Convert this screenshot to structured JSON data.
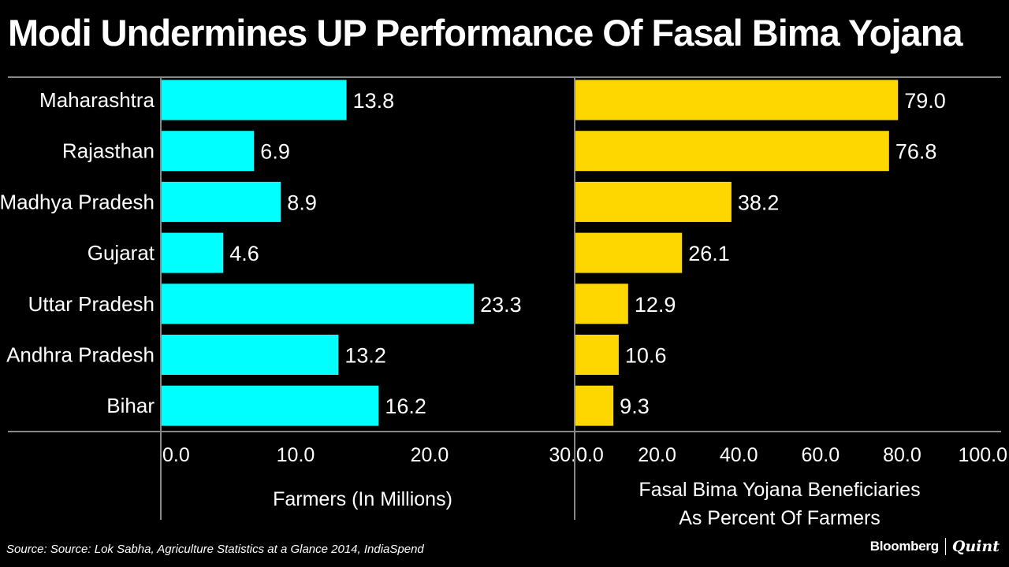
{
  "title": "Modi Undermines UP Performance Of Fasal Bima Yojana",
  "source": "Source: Source: Lok Sabha, Agriculture Statistics at a Glance 2014, IndiaSpend",
  "brand": {
    "left": "Bloomberg",
    "right": "Quint"
  },
  "colors": {
    "left_bars": "#00FFFF",
    "right_bars": "#FFD700",
    "background": "#000000",
    "axis": "#888888"
  },
  "chart_data": [
    {
      "type": "bar",
      "orientation": "horizontal",
      "categories": [
        "Maharashtra",
        "Rajasthan",
        "Madhya Pradesh",
        "Gujarat",
        "Uttar Pradesh",
        "Andhra Pradesh",
        "Bihar"
      ],
      "values": [
        13.8,
        6.9,
        8.9,
        4.6,
        23.3,
        13.2,
        16.2
      ],
      "value_labels": [
        "13.8",
        "6.9",
        "8.9",
        "4.6",
        "23.3",
        "13.2",
        "16.2"
      ],
      "xlabel": "Farmers (In Millions)",
      "xlim": [
        0,
        30
      ],
      "ticks": [
        0,
        10,
        20,
        30
      ],
      "tick_labels": [
        "0.0",
        "10.0",
        "20.0",
        "30.0"
      ]
    },
    {
      "type": "bar",
      "orientation": "horizontal",
      "categories": [
        "Maharashtra",
        "Rajasthan",
        "Madhya Pradesh",
        "Gujarat",
        "Uttar Pradesh",
        "Andhra Pradesh",
        "Bihar"
      ],
      "values": [
        79.0,
        76.8,
        38.2,
        26.1,
        12.9,
        10.6,
        9.3
      ],
      "value_labels": [
        "79.0",
        "76.8",
        "38.2",
        "26.1",
        "12.9",
        "10.6",
        "9.3"
      ],
      "xlabel": [
        "Fasal Bima Yojana Beneficiaries",
        "As Percent Of Farmers"
      ],
      "xlim": [
        0,
        100
      ],
      "ticks": [
        0,
        20,
        40,
        60,
        80,
        100
      ],
      "tick_labels": [
        "0.0",
        "20.0",
        "40.0",
        "60.0",
        "80.0",
        "100.0"
      ]
    }
  ]
}
